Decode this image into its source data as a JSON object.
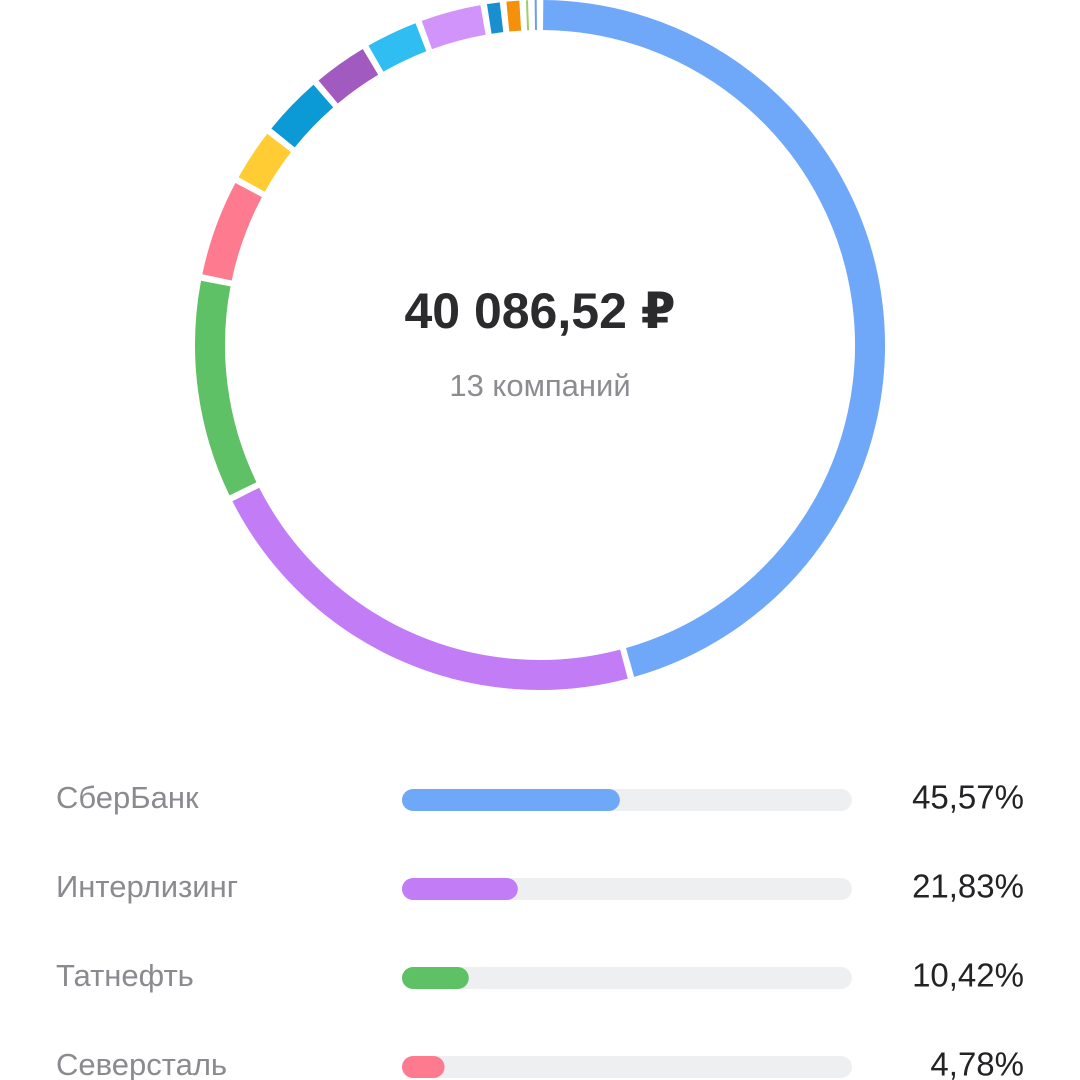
{
  "chart_data": {
    "type": "pie",
    "title": "40 086,52 ₽",
    "subtitle": "13 компаний",
    "categories": [
      "СберБанк",
      "Интерлизинг",
      "Татнефть",
      "Северсталь",
      null,
      null,
      null,
      null,
      null,
      null,
      null,
      null,
      null
    ],
    "values": [
      45.57,
      21.83,
      10.42,
      4.78,
      2.7,
      3.1,
      2.8,
      2.7,
      3.1,
      0.9,
      0.9,
      0.4,
      0.4
    ],
    "value_labels": [
      "45,57%",
      "21,83%",
      "10,42%",
      "4,78%",
      null,
      null,
      null,
      null,
      null,
      null,
      null,
      null,
      null
    ],
    "colors": [
      "#6fa8f8",
      "#c17cf6",
      "#5fc166",
      "#fd7a8f",
      "#ffcc33",
      "#0b9ad6",
      "#a05ac0",
      "#2fbdf2",
      "#d194fa",
      "#1a8fd0",
      "#f5900a",
      "#9ccf6a",
      "#6b9fea"
    ]
  }
}
